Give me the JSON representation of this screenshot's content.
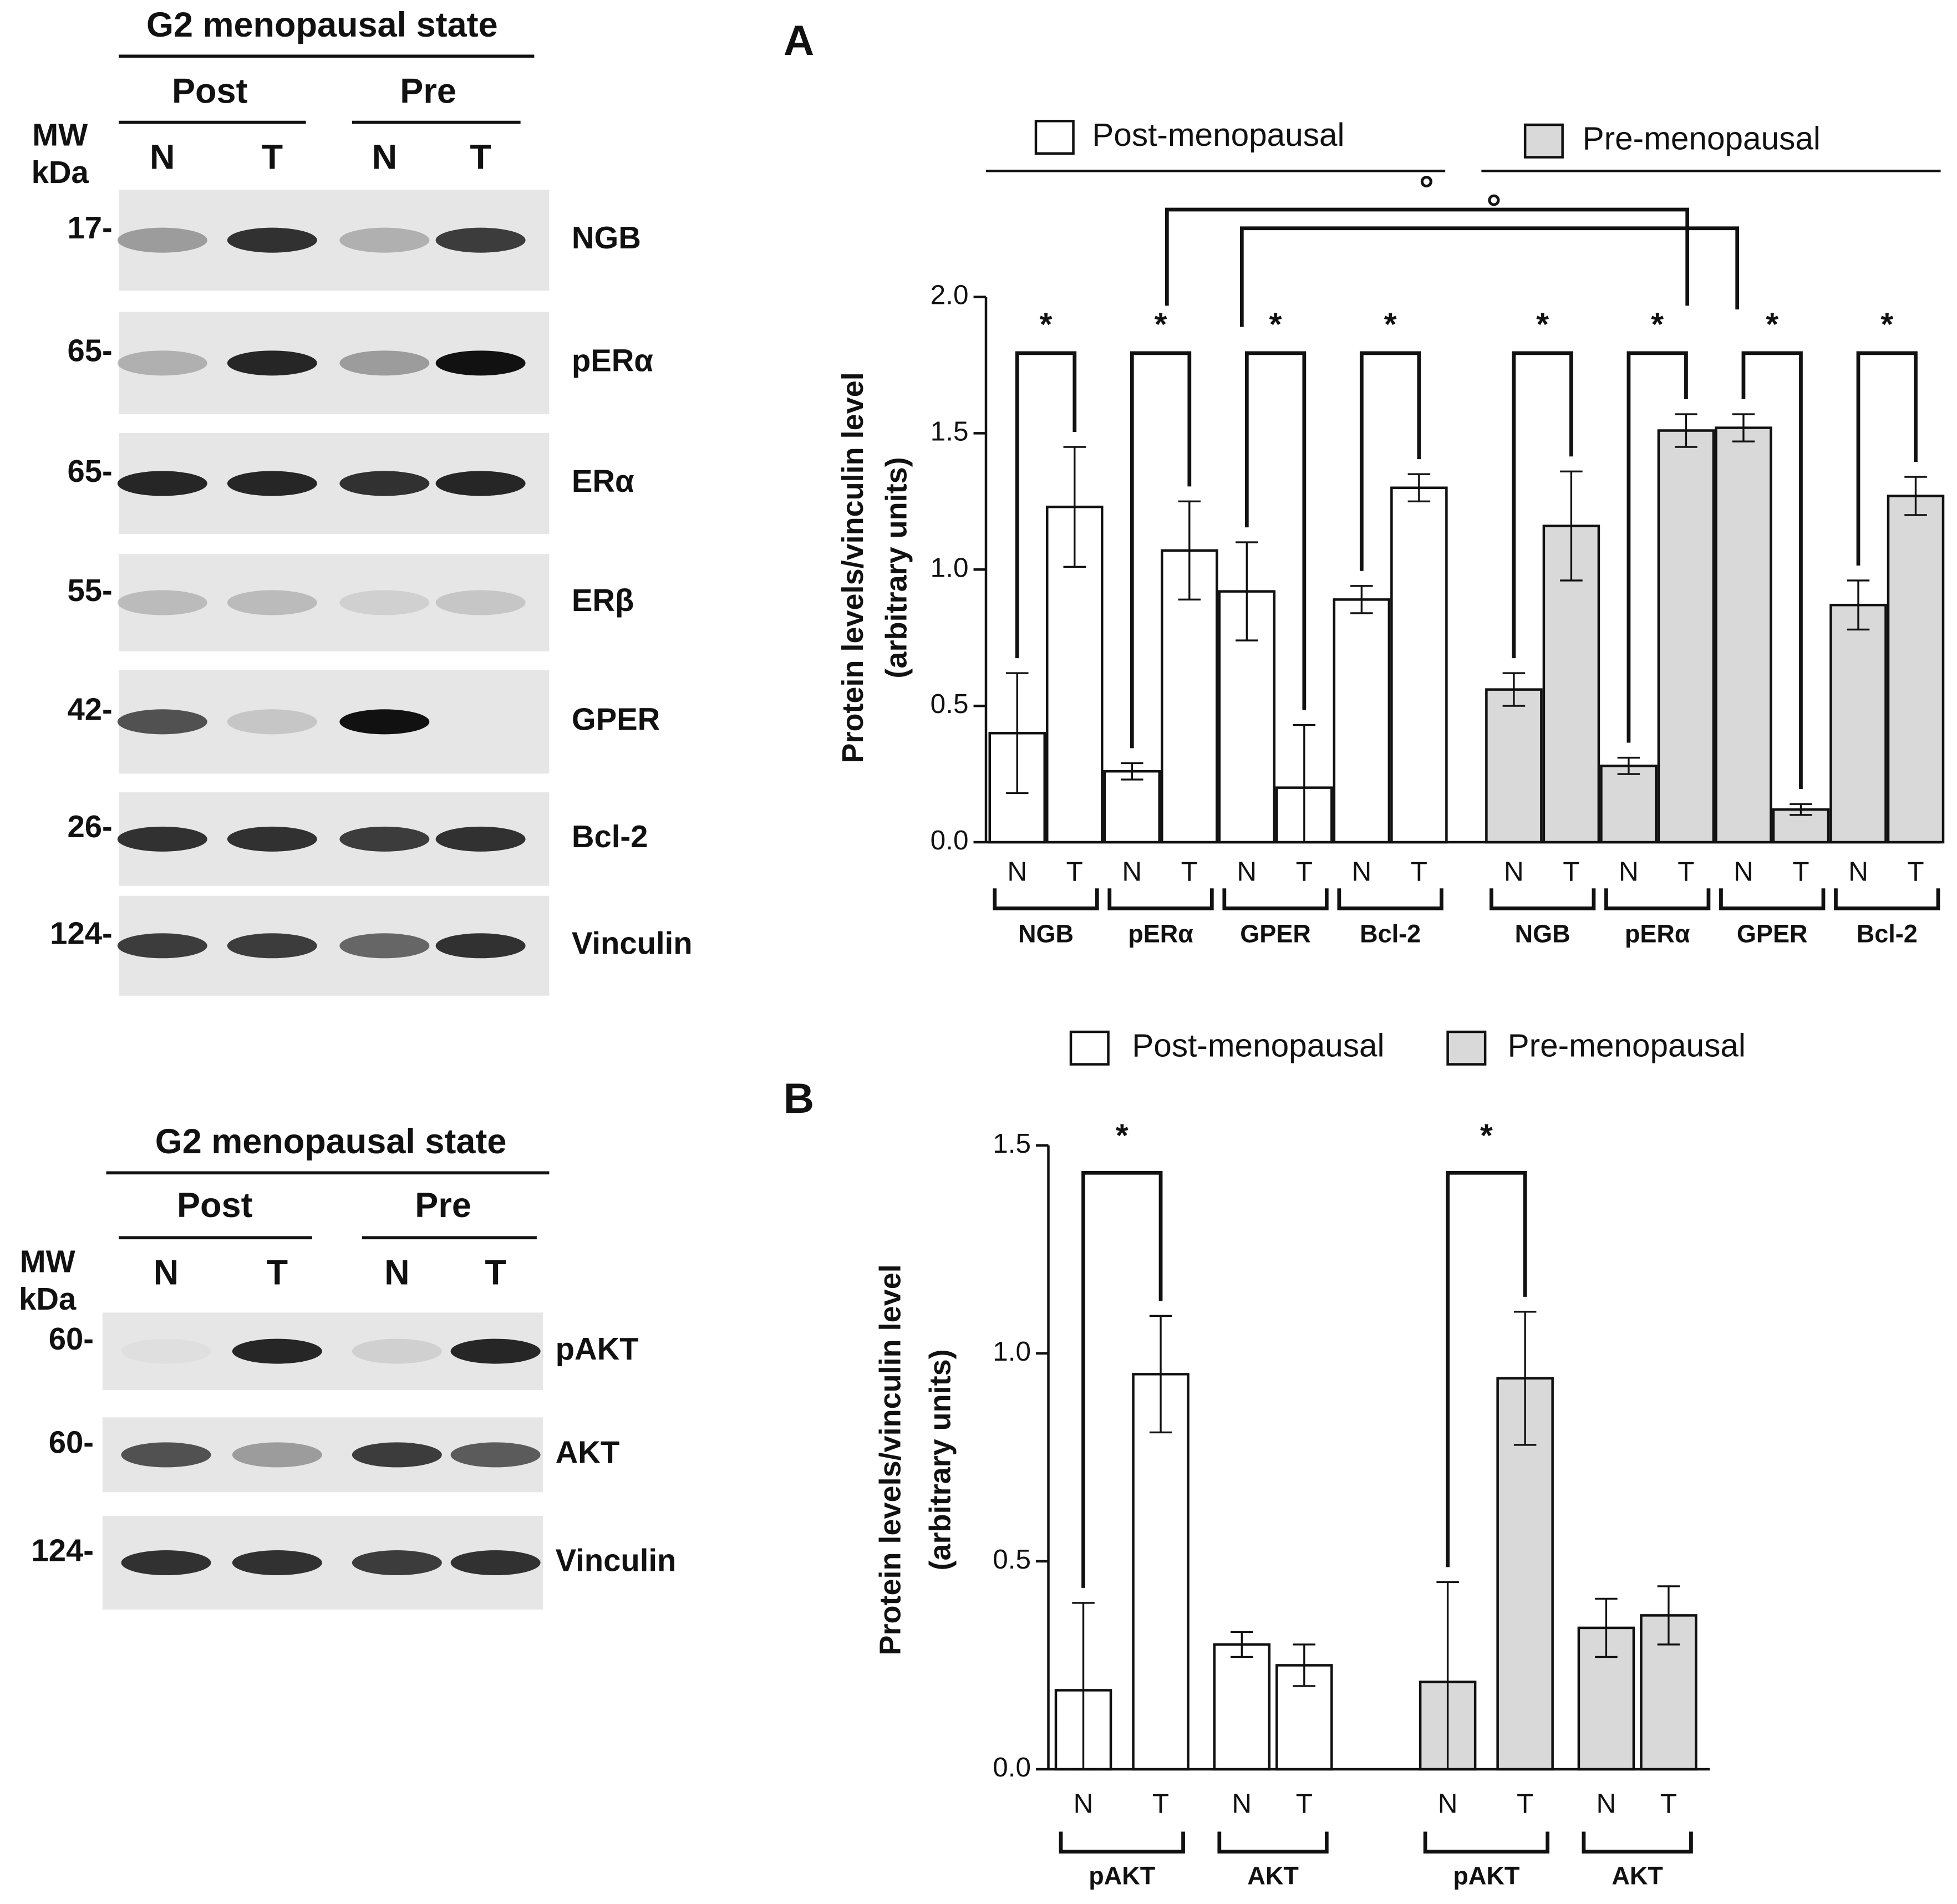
{
  "blots": [
    {
      "title": "G2 menopausal state",
      "groups": [
        "Post",
        "Pre"
      ],
      "lanes": [
        "N",
        "T",
        "N",
        "T"
      ],
      "mw_label": [
        "MW",
        "kDa"
      ],
      "rows": [
        {
          "mw": "17-",
          "protein": "NGB"
        },
        {
          "mw": "65-",
          "protein": "pERα"
        },
        {
          "mw": "65-",
          "protein": "ERα"
        },
        {
          "mw": "55-",
          "protein": "ERβ"
        },
        {
          "mw": "42-",
          "protein": "GPER"
        },
        {
          "mw": "26-",
          "protein": "Bcl-2"
        },
        {
          "mw": "124-",
          "protein": "Vinculin"
        }
      ]
    },
    {
      "title": "G2 menopausal state",
      "groups": [
        "Post",
        "Pre"
      ],
      "lanes": [
        "N",
        "T",
        "N",
        "T"
      ],
      "mw_label": [
        "MW",
        "kDa"
      ],
      "rows": [
        {
          "mw": "60-",
          "protein": "pAKT"
        },
        {
          "mw": "60-",
          "protein": "AKT"
        },
        {
          "mw": "124-",
          "protein": "Vinculin"
        }
      ]
    }
  ],
  "chart_data": [
    {
      "type": "bar",
      "panel": "A",
      "ylabel": [
        "Protein levels/vinculin level",
        "(arbitrary units)"
      ],
      "categories": [
        "N",
        "T",
        "N",
        "T",
        "N",
        "T",
        "N",
        "T",
        "N",
        "T",
        "N",
        "T",
        "N",
        "T",
        "N",
        "T"
      ],
      "groups": [
        "NGB",
        "pERα",
        "GPER",
        "Bcl-2",
        "NGB",
        "pERα",
        "GPER",
        "Bcl-2"
      ],
      "group_marks": [
        "*",
        "*",
        "*",
        "*",
        "*",
        "*",
        "*",
        "*"
      ],
      "cross_marks": [
        "°",
        "°"
      ],
      "series": [
        {
          "name": "Post-menopausal",
          "color": "#ffffff",
          "values": [
            0.4,
            1.23,
            0.26,
            1.07,
            0.92,
            0.2,
            0.89,
            1.3,
            null,
            null,
            null,
            null,
            null,
            null,
            null,
            null
          ],
          "errors": [
            0.22,
            0.22,
            0.03,
            0.18,
            0.18,
            0.23,
            0.05,
            0.05,
            null,
            null,
            null,
            null,
            null,
            null,
            null,
            null
          ]
        },
        {
          "name": "Pre-menopausal",
          "color": "#d9d9d9",
          "values": [
            null,
            null,
            null,
            null,
            null,
            null,
            null,
            null,
            0.56,
            1.16,
            0.28,
            1.51,
            1.52,
            0.12,
            0.87,
            1.27
          ],
          "errors": [
            null,
            null,
            null,
            null,
            null,
            null,
            null,
            null,
            0.06,
            0.2,
            0.03,
            0.06,
            0.05,
            0.02,
            0.09,
            0.07
          ]
        }
      ],
      "ylim": [
        0,
        2.0
      ],
      "yticks": [
        {
          "value": 0,
          "label": "0.0"
        },
        {
          "value": 0.5,
          "label": "0.5"
        },
        {
          "value": 1.0,
          "label": "1.0"
        },
        {
          "value": 1.5,
          "label": "1.5"
        },
        {
          "value": 2.0,
          "label": "2.0"
        }
      ]
    },
    {
      "type": "bar",
      "panel": "B",
      "ylabel": [
        "Protein levels/vinculin level",
        "(arbitrary units)"
      ],
      "categories": [
        "N",
        "T",
        "N",
        "T",
        "N",
        "T",
        "N",
        "T"
      ],
      "groups": [
        "pAKT",
        "AKT",
        "pAKT",
        "AKT"
      ],
      "group_marks": [
        "*",
        null,
        "*",
        null
      ],
      "series": [
        {
          "name": "Post-menopausal",
          "color": "#ffffff",
          "values": [
            0.19,
            0.95,
            0.3,
            0.25,
            null,
            null,
            null,
            null
          ],
          "errors": [
            0.21,
            0.14,
            0.03,
            0.05,
            null,
            null,
            null,
            null
          ]
        },
        {
          "name": "Pre-menopausal",
          "color": "#d9d9d9",
          "values": [
            null,
            null,
            null,
            null,
            0.21,
            0.94,
            0.34,
            0.37
          ],
          "errors": [
            null,
            null,
            null,
            null,
            0.24,
            0.16,
            0.07,
            0.07
          ]
        }
      ],
      "ylim": [
        0,
        1.5
      ],
      "yticks": [
        {
          "value": 0,
          "label": "0.0"
        },
        {
          "value": 0.5,
          "label": "0.5"
        },
        {
          "value": 1.0,
          "label": "1.0"
        },
        {
          "value": 1.5,
          "label": "1.5"
        }
      ]
    }
  ]
}
